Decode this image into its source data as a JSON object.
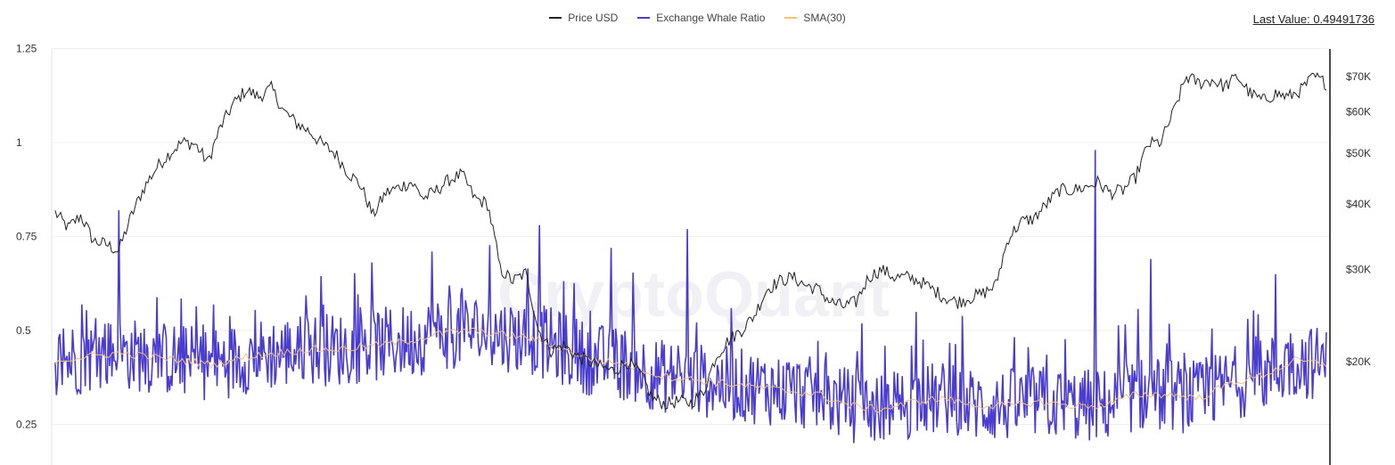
{
  "legend": {
    "items": [
      {
        "label": "Price USD",
        "color": "#222222"
      },
      {
        "label": "Exchange Whale Ratio",
        "color": "#4a3ccf"
      },
      {
        "label": "SMA(30)",
        "color": "#f2c27a"
      }
    ]
  },
  "last_value": {
    "label": "Last Value: 0.49491736"
  },
  "watermark": "CryptoQuant",
  "chart_data": {
    "type": "line",
    "title": "",
    "xlabel": "",
    "ylabel": "Exchange Whale Ratio",
    "y2label": "Price USD",
    "ylim": [
      0.17,
      1.25
    ],
    "left_ticks": [
      "1.25",
      "1",
      "0.75",
      "0.5",
      "0.25"
    ],
    "left_tick_values": [
      1.25,
      1.0,
      0.75,
      0.5,
      0.25
    ],
    "right_ticks": [
      "$70K",
      "$60K",
      "$50K",
      "$40K",
      "$30K",
      "$20K"
    ],
    "right_tick_values": [
      70000,
      60000,
      50000,
      40000,
      30000,
      20000
    ],
    "right_scale": "log",
    "grid": true,
    "legend_position": "top",
    "series": [
      {
        "name": "Price USD",
        "axis": "right",
        "color": "#222222",
        "x": [
          0,
          0.01,
          0.02,
          0.03,
          0.04,
          0.05,
          0.06,
          0.07,
          0.08,
          0.09,
          0.1,
          0.11,
          0.12,
          0.13,
          0.14,
          0.15,
          0.16,
          0.17,
          0.18,
          0.19,
          0.2,
          0.21,
          0.22,
          0.23,
          0.24,
          0.25,
          0.26,
          0.27,
          0.28,
          0.29,
          0.3,
          0.31,
          0.32,
          0.33,
          0.34,
          0.35,
          0.36,
          0.37,
          0.38,
          0.39,
          0.4,
          0.41,
          0.42,
          0.43,
          0.44,
          0.45,
          0.46,
          0.47,
          0.48,
          0.49,
          0.5,
          0.51,
          0.52,
          0.53,
          0.54,
          0.55,
          0.56,
          0.57,
          0.58,
          0.59,
          0.6,
          0.61,
          0.62,
          0.63,
          0.64,
          0.65,
          0.66,
          0.67,
          0.68,
          0.69,
          0.7,
          0.71,
          0.72,
          0.73,
          0.74,
          0.75,
          0.76,
          0.77,
          0.78,
          0.79,
          0.8,
          0.81,
          0.82,
          0.83,
          0.84,
          0.85,
          0.86,
          0.87,
          0.88,
          0.89,
          0.9,
          0.91,
          0.92,
          0.93,
          0.94,
          0.95,
          0.96,
          0.97,
          0.98,
          0.99,
          1.0
        ],
        "values": [
          38500,
          36000,
          38000,
          34000,
          33500,
          32500,
          38000,
          43000,
          47000,
          50000,
          52500,
          52000,
          48000,
          56000,
          62000,
          66000,
          64000,
          66500,
          60000,
          57000,
          55000,
          52000,
          50000,
          46000,
          43500,
          38000,
          42000,
          43000,
          44000,
          41000,
          42500,
          44500,
          45500,
          41000,
          40000,
          30000,
          28500,
          29500,
          23000,
          21000,
          21500,
          20500,
          20000,
          19500,
          19200,
          20000,
          19000,
          17000,
          16600,
          16800,
          16700,
          17500,
          20500,
          22000,
          23000,
          24500,
          27500,
          28500,
          29000,
          28000,
          27500,
          26000,
          25500,
          26000,
          29000,
          30000,
          29000,
          29000,
          28500,
          27500,
          26500,
          26000,
          26500,
          27000,
          28000,
          34500,
          37000,
          37500,
          40000,
          42500,
          42500,
          43000,
          44000,
          42000,
          42500,
          45000,
          52000,
          52500,
          60000,
          70000,
          68000,
          69000,
          67000,
          70000,
          65000,
          63000,
          65000,
          64000,
          66000,
          70000,
          68000
        ]
      },
      {
        "name": "Exchange Whale Ratio",
        "axis": "left",
        "color": "#4a3ccf",
        "last_value": 0.49491736,
        "notable_spikes": [
          {
            "x_frac": 0.05,
            "value": 0.82
          },
          {
            "x_frac": 0.296,
            "value": 0.71
          },
          {
            "x_frac": 0.381,
            "value": 0.78
          },
          {
            "x_frac": 0.437,
            "value": 0.72
          },
          {
            "x_frac": 0.497,
            "value": 0.77
          },
          {
            "x_frac": 0.818,
            "value": 0.98
          },
          {
            "x_frac": 0.862,
            "value": 0.69
          },
          {
            "x_frac": 0.96,
            "value": 0.65
          }
        ],
        "baseline": [
          0.42,
          0.43,
          0.44,
          0.43,
          0.42,
          0.41,
          0.43,
          0.44,
          0.45,
          0.45,
          0.46,
          0.47,
          0.49,
          0.5,
          0.49,
          0.48,
          0.45,
          0.42,
          0.41,
          0.38,
          0.37,
          0.36,
          0.35,
          0.34,
          0.33,
          0.3,
          0.29,
          0.31,
          0.32,
          0.3,
          0.3,
          0.31,
          0.3,
          0.3,
          0.33,
          0.33,
          0.32,
          0.36,
          0.38,
          0.42,
          0.41
        ]
      },
      {
        "name": "SMA(30)",
        "axis": "left",
        "color": "#f2c27a",
        "values": [
          0.42,
          0.43,
          0.44,
          0.43,
          0.42,
          0.41,
          0.43,
          0.44,
          0.45,
          0.45,
          0.46,
          0.47,
          0.49,
          0.5,
          0.49,
          0.48,
          0.45,
          0.42,
          0.41,
          0.38,
          0.37,
          0.36,
          0.35,
          0.34,
          0.33,
          0.3,
          0.29,
          0.31,
          0.32,
          0.3,
          0.3,
          0.31,
          0.3,
          0.3,
          0.33,
          0.33,
          0.32,
          0.36,
          0.38,
          0.42,
          0.41
        ]
      }
    ]
  }
}
